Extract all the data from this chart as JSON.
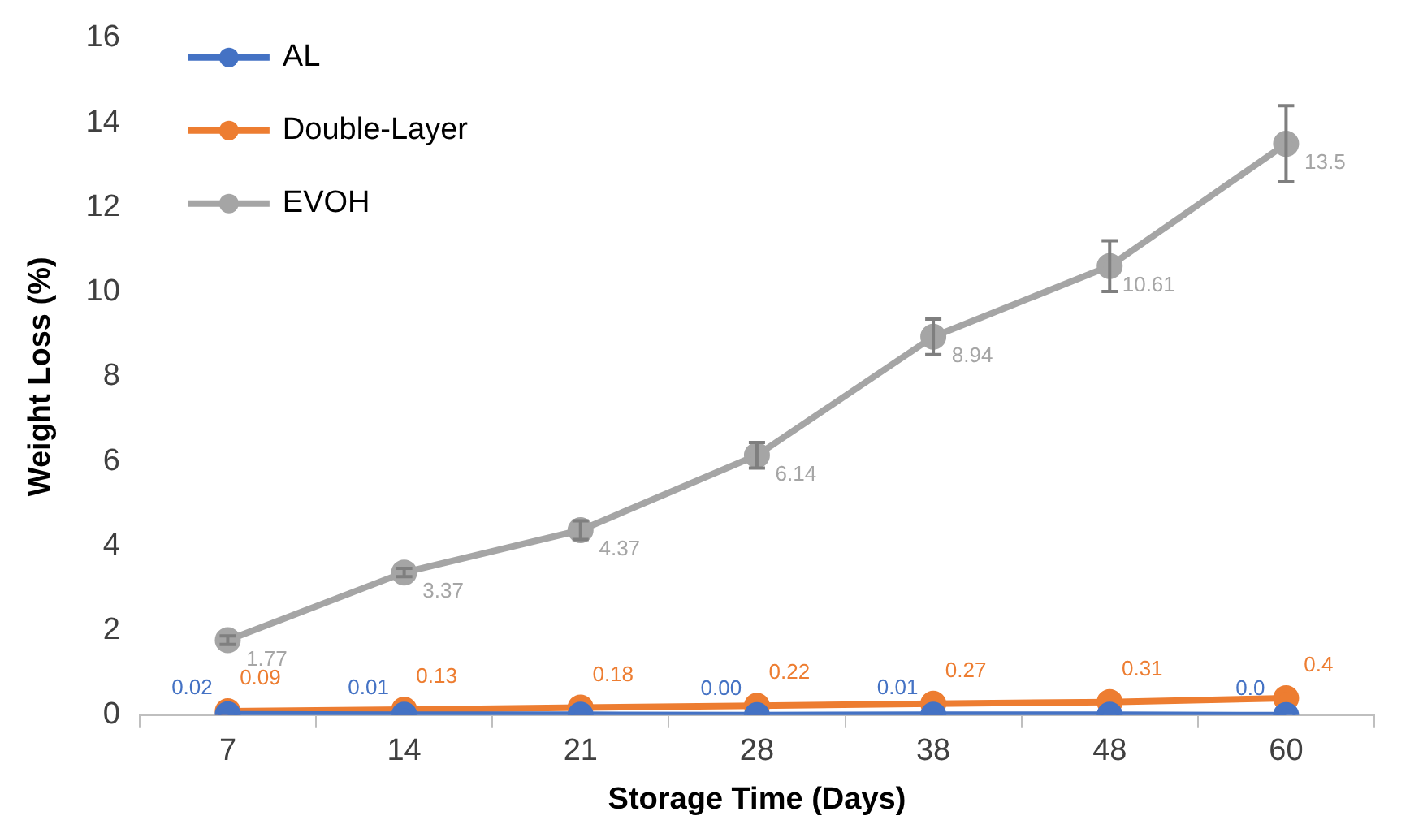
{
  "chart_data": {
    "type": "line",
    "xlabel": "Storage Time (Days)",
    "ylabel": "Weight Loss (%)",
    "categories": [
      "7",
      "14",
      "21",
      "28",
      "38",
      "48",
      "60"
    ],
    "ylim": [
      0,
      16
    ],
    "yticks": [
      0,
      2,
      4,
      6,
      8,
      10,
      12,
      14,
      16
    ],
    "grid": false,
    "legend": "top left",
    "marker": "circle",
    "line_style": "solid",
    "series": [
      {
        "name": "AL",
        "color": "#4472c4",
        "values": [
          0.02,
          0.01,
          0.01,
          0.0,
          0.01,
          0.01,
          0.0
        ],
        "value_labels": [
          "0.02",
          "0.01",
          null,
          "0.00",
          "0.01",
          null,
          "0.0"
        ]
      },
      {
        "name": "Double-Layer",
        "color": "#ed7d31",
        "values": [
          0.09,
          0.13,
          0.18,
          0.22,
          0.27,
          0.31,
          0.4
        ],
        "value_labels": [
          "0.09",
          "0.13",
          "0.18",
          "0.22",
          "0.27",
          "0.31",
          "0.4"
        ]
      },
      {
        "name": "EVOH",
        "color": "#a5a5a5",
        "values": [
          1.77,
          3.37,
          4.37,
          6.14,
          8.94,
          10.61,
          13.5
        ],
        "value_labels": [
          "1.77",
          "3.37",
          "4.37",
          "6.14",
          "8.94",
          "10.61",
          "13.5"
        ],
        "errors": [
          0.1,
          0.1,
          0.22,
          0.3,
          0.42,
          0.6,
          0.9
        ]
      }
    ]
  }
}
